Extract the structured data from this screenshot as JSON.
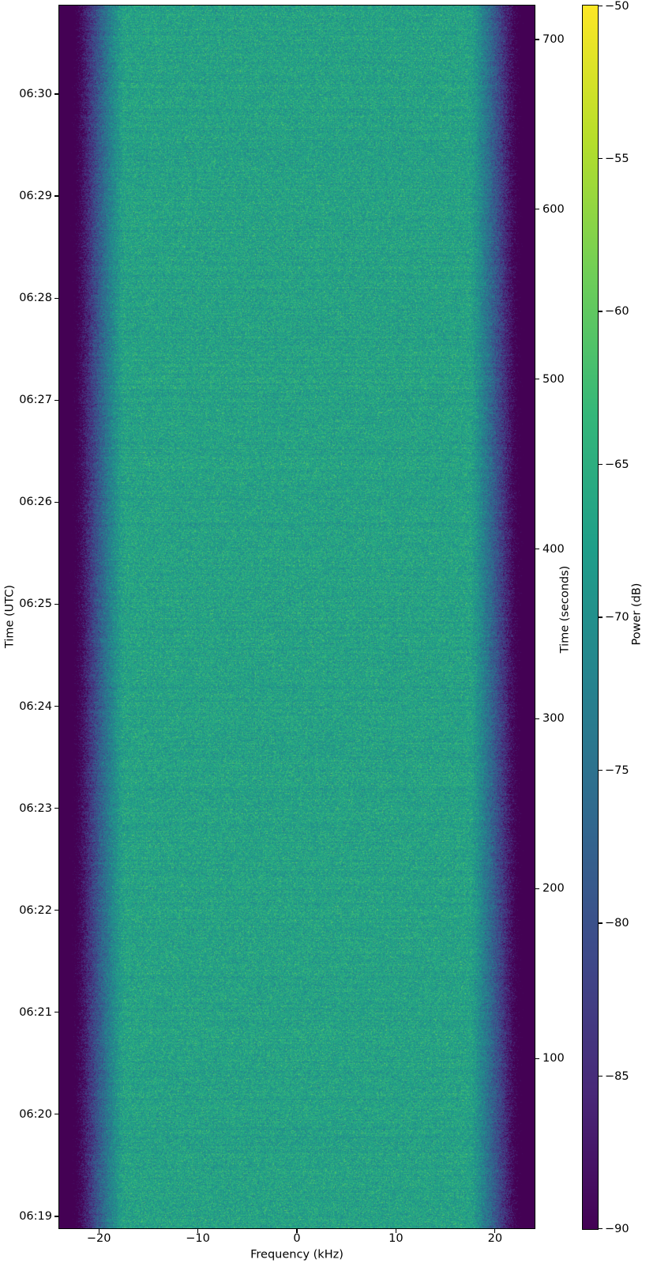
{
  "chart_data": {
    "type": "heatmap",
    "title": "",
    "xlabel": "Frequency (kHz)",
    "ylabel_left": "Time (UTC)",
    "ylabel_right": "Time (seconds)",
    "colorbar_label": "Power (dB)",
    "x_range_khz": [
      -24,
      24
    ],
    "x_ticks": [
      {
        "v": -20,
        "label": "−20"
      },
      {
        "v": -10,
        "label": "−10"
      },
      {
        "v": 0,
        "label": "0"
      },
      {
        "v": 10,
        "label": "10"
      },
      {
        "v": 20,
        "label": "20"
      }
    ],
    "utc_ticks_top_to_bottom": [
      "06:30",
      "06:29",
      "06:28",
      "06:27",
      "06:26",
      "06:25",
      "06:24",
      "06:23",
      "06:22",
      "06:21",
      "06:20",
      "06:19"
    ],
    "seconds_range": [
      0,
      720
    ],
    "seconds_ticks": [
      {
        "v": 700,
        "label": "700"
      },
      {
        "v": 600,
        "label": "600"
      },
      {
        "v": 500,
        "label": "500"
      },
      {
        "v": 400,
        "label": "400"
      },
      {
        "v": 300,
        "label": "300"
      },
      {
        "v": 200,
        "label": "200"
      },
      {
        "v": 100,
        "label": "100"
      }
    ],
    "color_range_db": [
      -90,
      -50
    ],
    "colorbar_ticks": [
      {
        "v": -50,
        "label": "−50"
      },
      {
        "v": -55,
        "label": "−55"
      },
      {
        "v": -60,
        "label": "−60"
      },
      {
        "v": -65,
        "label": "−65"
      },
      {
        "v": -70,
        "label": "−70"
      },
      {
        "v": -75,
        "label": "−75"
      },
      {
        "v": -80,
        "label": "−80"
      },
      {
        "v": -85,
        "label": "−85"
      },
      {
        "v": -90,
        "label": "−90"
      }
    ],
    "colormap": "viridis",
    "viridis_stops": [
      [
        0.0,
        "#440154"
      ],
      [
        0.111,
        "#482878"
      ],
      [
        0.222,
        "#3e4989"
      ],
      [
        0.333,
        "#31688e"
      ],
      [
        0.444,
        "#26828e"
      ],
      [
        0.556,
        "#1f9e89"
      ],
      [
        0.667,
        "#35b779"
      ],
      [
        0.778,
        "#6ece58"
      ],
      [
        0.889,
        "#b5de2b"
      ],
      [
        1.0,
        "#fde725"
      ]
    ],
    "noise_model": {
      "passband_mean_db": -67,
      "noise_std_db": 2.6,
      "row_jitter_std_db": 0.5,
      "edge_start_khz": 17.5,
      "edge_width_khz": 5.5,
      "edge_atten_db": 30,
      "edge_exponent": 1.2,
      "seed": 42
    }
  }
}
